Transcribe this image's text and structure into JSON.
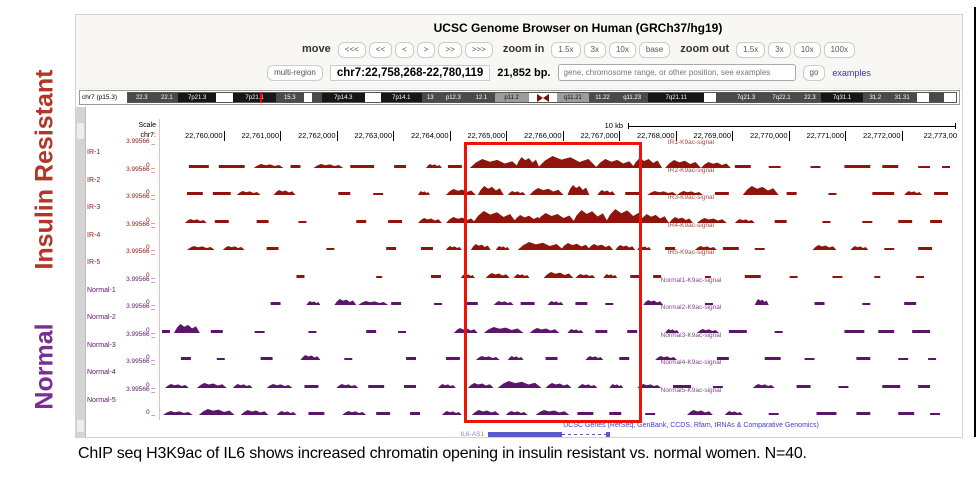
{
  "side_labels": {
    "ir": "Insulin Resistant",
    "normal": "Normal"
  },
  "colors": {
    "ir": "#8f150c",
    "normal": "#5b1569",
    "highlight": "#ec1309",
    "gene_blue": "#5a5acc"
  },
  "header": {
    "title": "UCSC Genome Browser on Human (GRCh37/hg19)",
    "move_label": "move",
    "move_buttons": [
      "<<<",
      "<<",
      "<",
      ">",
      ">>",
      ">>>"
    ],
    "zoom_in_label": "zoom in",
    "zoom_in_buttons": [
      "1.5x",
      "3x",
      "10x",
      "base"
    ],
    "zoom_out_label": "zoom out",
    "zoom_out_buttons": [
      "1.5x",
      "3x",
      "10x",
      "100x"
    ],
    "multi_region_label": "multi-region",
    "position": "chr7:22,758,268-22,780,119",
    "size": "21,852 bp.",
    "search_placeholder": "gene, chromosome range, or other position, see examples",
    "go_label": "go",
    "examples_label": "examples"
  },
  "ideogram": {
    "label": "chr7 (p15.3)",
    "marker_pos_pct": 15.9,
    "bands": [
      {
        "l": "22.3",
        "c": "d",
        "w": 2.6
      },
      {
        "l": "22.1",
        "c": "d",
        "w": 1.8
      },
      {
        "l": "7p21.3",
        "c": "b",
        "w": 3.2
      },
      {
        "l": "",
        "c": "w",
        "w": 2.8
      },
      {
        "l": "7p21.1",
        "c": "b",
        "w": 4
      },
      {
        "l": "15.3",
        "c": "d",
        "w": 2.6
      },
      {
        "l": "",
        "c": "w",
        "w": 1.4
      },
      {
        "l": "",
        "c": "d",
        "w": 1.6
      },
      {
        "l": "7p14.3",
        "c": "b",
        "w": 4
      },
      {
        "l": "",
        "c": "w",
        "w": 2.6
      },
      {
        "l": "7p14.1",
        "c": "b",
        "w": 3.8
      },
      {
        "l": "13",
        "c": "d",
        "w": 1.6
      },
      {
        "l": "p12.3",
        "c": "d",
        "w": 2.4
      },
      {
        "l": "12.1",
        "c": "d",
        "w": 2.4
      },
      {
        "l": "p11.2",
        "c": "g",
        "w": 3.2
      },
      {
        "l": "",
        "c": "cen",
        "w": 2.6
      },
      {
        "l": "q11.21",
        "c": "g",
        "w": 2.4
      },
      {
        "l": "11.22",
        "c": "d",
        "w": 2
      },
      {
        "l": "q11.23",
        "c": "d",
        "w": 2.4
      },
      {
        "l": "7q21.11",
        "c": "b",
        "w": 5.6
      },
      {
        "l": "",
        "c": "w",
        "w": 2
      },
      {
        "l": "",
        "c": "d",
        "w": 2
      },
      {
        "l": "7q21.3",
        "c": "d",
        "w": 2.8
      },
      {
        "l": "7q22.1",
        "c": "d",
        "w": 2.8
      },
      {
        "l": "22.3",
        "c": "d",
        "w": 1.6
      },
      {
        "l": "7q31.1",
        "c": "b",
        "w": 4
      },
      {
        "l": "31.2",
        "c": "d",
        "w": 2
      },
      {
        "l": "31.31",
        "c": "d",
        "w": 2.4
      },
      {
        "l": "",
        "c": "w",
        "w": 2
      },
      {
        "l": "",
        "c": "d",
        "w": 2.4
      },
      {
        "l": "",
        "c": "w",
        "w": 2
      }
    ]
  },
  "axis": {
    "scale_label": "Scale",
    "scale_bar_label": "10 kb",
    "chrom_label": "chr7:",
    "ticks": [
      "22,760,000",
      "22,761,000",
      "22,762,000",
      "22,763,000",
      "22,764,000",
      "22,765,000",
      "22,766,000",
      "22,767,000",
      "22,768,000",
      "22,769,000",
      "22,770,000",
      "22,771,000",
      "22,772,000",
      "22,773,00"
    ]
  },
  "tracks": [
    {
      "name": "IR-1",
      "title": "IR1-K9ac-signal",
      "group": "ir",
      "ymax": "3.99566 _",
      "ymin": "0 _",
      "signal": [
        [
          30,
          20,
          3
        ],
        [
          60,
          26,
          3
        ],
        [
          95,
          30,
          4
        ],
        [
          132,
          10,
          3
        ],
        [
          155,
          30,
          4
        ],
        [
          192,
          24,
          3
        ],
        [
          236,
          12,
          3
        ],
        [
          268,
          16,
          4
        ],
        [
          290,
          14,
          3
        ],
        [
          312,
          50,
          9
        ],
        [
          358,
          24,
          11
        ],
        [
          380,
          60,
          12
        ],
        [
          438,
          40,
          9
        ],
        [
          475,
          30,
          10
        ],
        [
          508,
          36,
          8
        ],
        [
          544,
          30,
          6
        ],
        [
          578,
          16,
          3
        ],
        [
          612,
          12,
          2
        ],
        [
          654,
          10,
          2
        ],
        [
          688,
          26,
          3
        ],
        [
          726,
          16,
          3
        ],
        [
          762,
          12,
          2
        ],
        [
          786,
          8,
          2
        ]
      ]
    },
    {
      "name": "IR-2",
      "title": "IR2-K9ac-signal",
      "group": "ir",
      "ymax": "3.99566 _",
      "ymin": "0 _",
      "signal": [
        [
          28,
          16,
          3
        ],
        [
          54,
          18,
          3
        ],
        [
          78,
          24,
          4
        ],
        [
          115,
          22,
          5
        ],
        [
          180,
          12,
          3
        ],
        [
          215,
          10,
          2
        ],
        [
          260,
          12,
          4
        ],
        [
          288,
          30,
          6
        ],
        [
          320,
          26,
          9
        ],
        [
          350,
          18,
          4
        ],
        [
          372,
          34,
          7
        ],
        [
          410,
          22,
          10
        ],
        [
          440,
          18,
          5
        ],
        [
          468,
          14,
          3
        ],
        [
          490,
          30,
          4
        ],
        [
          520,
          26,
          4
        ],
        [
          558,
          14,
          3
        ],
        [
          586,
          36,
          9
        ],
        [
          630,
          10,
          3
        ],
        [
          672,
          8,
          2
        ],
        [
          716,
          22,
          3
        ],
        [
          748,
          18,
          4
        ],
        [
          778,
          14,
          3
        ]
      ]
    },
    {
      "name": "IR-3",
      "title": "IR3-K9ac-signal",
      "group": "ir",
      "ymax": "3.99566 _",
      "ymin": "0 _",
      "signal": [
        [
          26,
          22,
          4
        ],
        [
          56,
          14,
          3
        ],
        [
          98,
          12,
          3
        ],
        [
          140,
          8,
          2
        ],
        [
          198,
          10,
          3
        ],
        [
          230,
          14,
          3
        ],
        [
          260,
          24,
          5
        ],
        [
          288,
          30,
          6
        ],
        [
          315,
          44,
          12
        ],
        [
          355,
          30,
          8
        ],
        [
          378,
          40,
          10
        ],
        [
          415,
          36,
          13
        ],
        [
          448,
          40,
          14
        ],
        [
          482,
          30,
          9
        ],
        [
          512,
          24,
          6
        ],
        [
          540,
          30,
          5
        ],
        [
          578,
          20,
          4
        ],
        [
          618,
          12,
          3
        ],
        [
          666,
          8,
          2
        ],
        [
          706,
          10,
          2
        ],
        [
          742,
          14,
          3
        ],
        [
          774,
          12,
          3
        ]
      ]
    },
    {
      "name": "IR-4",
      "title": "IR4-K9ac-signal",
      "group": "ir",
      "ymax": "3.99566 _",
      "ymin": "0 _",
      "signal": [
        [
          28,
          28,
          4
        ],
        [
          64,
          22,
          4
        ],
        [
          108,
          12,
          3
        ],
        [
          168,
          8,
          2
        ],
        [
          228,
          10,
          3
        ],
        [
          263,
          12,
          3
        ],
        [
          288,
          16,
          4
        ],
        [
          313,
          20,
          6
        ],
        [
          338,
          14,
          4
        ],
        [
          360,
          46,
          8
        ],
        [
          403,
          30,
          7
        ],
        [
          430,
          26,
          6
        ],
        [
          458,
          20,
          5
        ],
        [
          480,
          14,
          4
        ],
        [
          508,
          10,
          3
        ],
        [
          538,
          22,
          4
        ],
        [
          566,
          16,
          3
        ],
        [
          598,
          10,
          2
        ],
        [
          656,
          24,
          5
        ],
        [
          694,
          18,
          4
        ],
        [
          728,
          10,
          2
        ],
        [
          762,
          14,
          3
        ]
      ]
    },
    {
      "name": "IR-5",
      "title": "IR5-K9ac-signal",
      "group": "ir",
      "ymax": "3.99566 _",
      "ymin": "0 _",
      "signal": [
        [
          138,
          8,
          3
        ],
        [
          218,
          6,
          2
        ],
        [
          273,
          10,
          3
        ],
        [
          303,
          14,
          4
        ],
        [
          328,
          24,
          5
        ],
        [
          356,
          16,
          4
        ],
        [
          386,
          30,
          6
        ],
        [
          418,
          20,
          4
        ],
        [
          446,
          14,
          4
        ],
        [
          473,
          10,
          3
        ],
        [
          496,
          8,
          3
        ],
        [
          548,
          6,
          2
        ],
        [
          588,
          16,
          3
        ],
        [
          633,
          8,
          2
        ],
        [
          676,
          10,
          2
        ],
        [
          718,
          6,
          2
        ],
        [
          760,
          8,
          2
        ]
      ]
    },
    {
      "name": "Normal-1",
      "title": "Normal1-K9ac-signal",
      "group": "normal",
      "ymax": "3.99566 _",
      "ymin": "0 _",
      "signal": [
        [
          112,
          10,
          3
        ],
        [
          148,
          14,
          4
        ],
        [
          176,
          22,
          6
        ],
        [
          200,
          30,
          4
        ],
        [
          233,
          10,
          3
        ],
        [
          276,
          8,
          2
        ],
        [
          308,
          12,
          3
        ],
        [
          336,
          20,
          4
        ],
        [
          363,
          14,
          3
        ],
        [
          390,
          16,
          4
        ],
        [
          418,
          12,
          3
        ],
        [
          448,
          8,
          2
        ],
        [
          486,
          20,
          5
        ],
        [
          548,
          8,
          2
        ],
        [
          598,
          14,
          6
        ],
        [
          658,
          10,
          3
        ],
        [
          706,
          8,
          2
        ],
        [
          748,
          12,
          3
        ]
      ]
    },
    {
      "name": "Normal-2",
      "title": "Normal2-K9ac-signal",
      "group": "normal",
      "ymax": "3.99566 _",
      "ymin": "0 _",
      "signal": [
        [
          3,
          8,
          3
        ],
        [
          15,
          26,
          9
        ],
        [
          52,
          12,
          3
        ],
        [
          96,
          10,
          2
        ],
        [
          150,
          8,
          2
        ],
        [
          208,
          10,
          3
        ],
        [
          240,
          8,
          2
        ],
        [
          296,
          24,
          5
        ],
        [
          326,
          40,
          6
        ],
        [
          372,
          30,
          5
        ],
        [
          410,
          16,
          4
        ],
        [
          438,
          12,
          3
        ],
        [
          470,
          10,
          3
        ],
        [
          508,
          14,
          4
        ],
        [
          540,
          22,
          4
        ],
        [
          572,
          18,
          3
        ],
        [
          618,
          8,
          2
        ],
        [
          688,
          20,
          3
        ],
        [
          722,
          16,
          3
        ],
        [
          756,
          18,
          3
        ]
      ]
    },
    {
      "name": "Normal-3",
      "title": "Normal3-K9ac-signal",
      "group": "normal",
      "ymax": "3.99566 _",
      "ymin": "0 _",
      "signal": [
        [
          22,
          10,
          3
        ],
        [
          58,
          8,
          2
        ],
        [
          102,
          12,
          3
        ],
        [
          142,
          20,
          5
        ],
        [
          186,
          8,
          2
        ],
        [
          248,
          10,
          3
        ],
        [
          288,
          14,
          3
        ],
        [
          318,
          24,
          4
        ],
        [
          350,
          16,
          4
        ],
        [
          388,
          12,
          3
        ],
        [
          428,
          18,
          4
        ],
        [
          462,
          10,
          3
        ],
        [
          498,
          22,
          4
        ],
        [
          560,
          12,
          3
        ],
        [
          608,
          16,
          3
        ],
        [
          648,
          10,
          2
        ],
        [
          700,
          14,
          3
        ],
        [
          742,
          10,
          2
        ],
        [
          772,
          8,
          2
        ]
      ]
    },
    {
      "name": "Normal-4",
      "title": "Normal4-K9ac-signal",
      "group": "normal",
      "ymax": "3.99566 _",
      "ymin": "0 _",
      "signal": [
        [
          6,
          24,
          4
        ],
        [
          38,
          30,
          5
        ],
        [
          74,
          20,
          4
        ],
        [
          108,
          26,
          4
        ],
        [
          146,
          14,
          3
        ],
        [
          178,
          22,
          4
        ],
        [
          210,
          16,
          3
        ],
        [
          246,
          12,
          3
        ],
        [
          280,
          18,
          4
        ],
        [
          310,
          26,
          5
        ],
        [
          340,
          44,
          7
        ],
        [
          388,
          26,
          5
        ],
        [
          420,
          20,
          4
        ],
        [
          452,
          14,
          4
        ],
        [
          480,
          24,
          4
        ],
        [
          516,
          18,
          3
        ],
        [
          556,
          10,
          2
        ],
        [
          596,
          22,
          4
        ],
        [
          640,
          14,
          3
        ],
        [
          682,
          10,
          2
        ],
        [
          726,
          18,
          3
        ],
        [
          762,
          12,
          3
        ]
      ]
    },
    {
      "name": "Normal-5",
      "title": "Normal5-K9ac-signal",
      "group": "normal",
      "ymax": "3.99566 _",
      "ymin": "0 _",
      "signal": [
        [
          4,
          30,
          4
        ],
        [
          40,
          36,
          6
        ],
        [
          82,
          28,
          5
        ],
        [
          118,
          20,
          4
        ],
        [
          150,
          16,
          3
        ],
        [
          184,
          24,
          4
        ],
        [
          218,
          14,
          3
        ],
        [
          252,
          10,
          3
        ],
        [
          284,
          20,
          4
        ],
        [
          314,
          28,
          5
        ],
        [
          348,
          22,
          4
        ],
        [
          378,
          34,
          5
        ],
        [
          420,
          16,
          3
        ],
        [
          452,
          12,
          3
        ],
        [
          488,
          10,
          2
        ],
        [
          530,
          26,
          5
        ],
        [
          568,
          18,
          4
        ],
        [
          612,
          10,
          2
        ],
        [
          660,
          20,
          3
        ],
        [
          700,
          14,
          3
        ],
        [
          742,
          16,
          3
        ],
        [
          774,
          10,
          2
        ]
      ]
    }
  ],
  "genes": {
    "group_title": "UCSC Genes (RefSeq, GenBank, CCDS, Rfam, tRNAs & Comparative Genomics)",
    "gene_name": "IL6-AS1"
  },
  "caption": "ChIP seq H3K9ac of IL6 shows increased chromatin opening in insulin resistant vs. normal women. N=40."
}
